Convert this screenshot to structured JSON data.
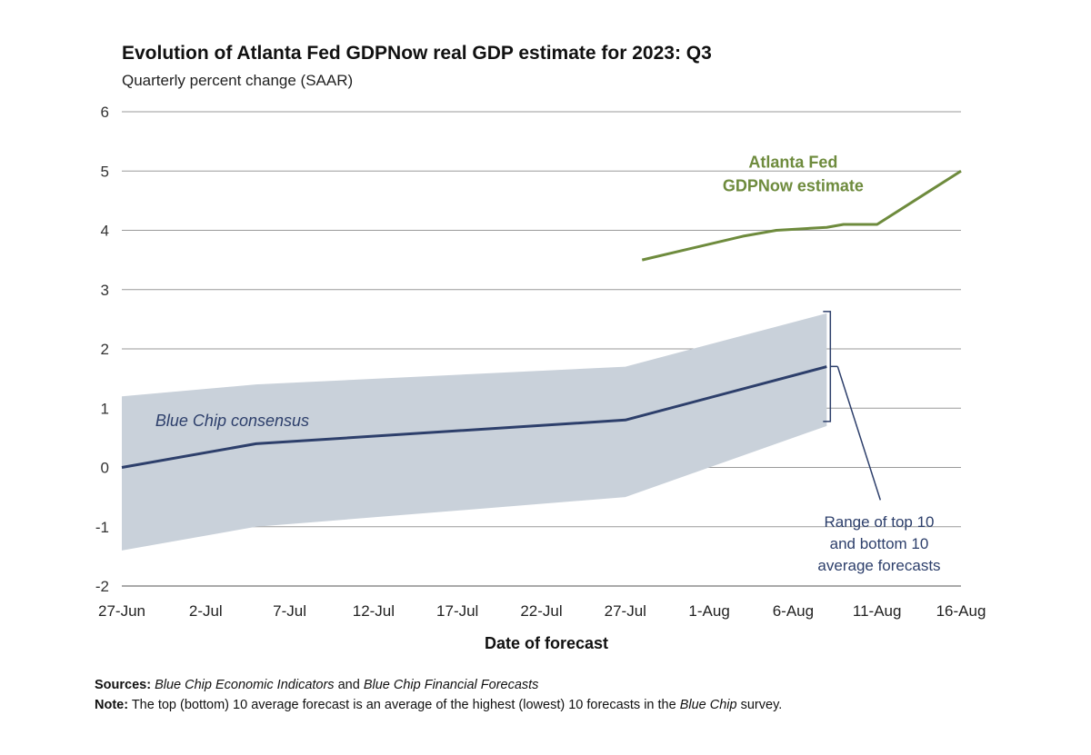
{
  "chart_data": {
    "type": "line",
    "title": "Evolution of Atlanta Fed GDPNow real GDP estimate for 2023: Q3",
    "subtitle": "Quarterly percent change (SAAR)",
    "xlabel": "Date of forecast",
    "ylabel": "",
    "x_unit": "day",
    "x_ticks": [
      {
        "label": "27-Jun",
        "date": "2023-06-27"
      },
      {
        "label": "2-Jul",
        "date": "2023-07-02"
      },
      {
        "label": "7-Jul",
        "date": "2023-07-07"
      },
      {
        "label": "12-Jul",
        "date": "2023-07-12"
      },
      {
        "label": "17-Jul",
        "date": "2023-07-17"
      },
      {
        "label": "22-Jul",
        "date": "2023-07-22"
      },
      {
        "label": "27-Jul",
        "date": "2023-07-27"
      },
      {
        "label": "1-Aug",
        "date": "2023-08-01"
      },
      {
        "label": "6-Aug",
        "date": "2023-08-06"
      },
      {
        "label": "11-Aug",
        "date": "2023-08-11"
      },
      {
        "label": "16-Aug",
        "date": "2023-08-16"
      }
    ],
    "xlim": [
      "2023-06-27",
      "2023-08-16"
    ],
    "ylim": [
      -2,
      6
    ],
    "y_ticks": [
      -2,
      -1,
      0,
      1,
      2,
      3,
      4,
      5,
      6
    ],
    "grid": true,
    "series": [
      {
        "name": "Atlanta Fed GDPNow estimate",
        "label_lines": [
          "Atlanta Fed",
          "GDPNow estimate"
        ],
        "color": "#6e8b3d",
        "points": [
          {
            "date": "2023-07-28",
            "value": 3.5
          },
          {
            "date": "2023-08-03",
            "value": 3.9
          },
          {
            "date": "2023-08-05",
            "value": 4.0
          },
          {
            "date": "2023-08-08",
            "value": 4.05
          },
          {
            "date": "2023-08-09",
            "value": 4.1
          },
          {
            "date": "2023-08-11",
            "value": 4.1
          },
          {
            "date": "2023-08-16",
            "value": 5.0
          }
        ]
      },
      {
        "name": "Blue Chip consensus",
        "color": "#2d3f6b",
        "points": [
          {
            "date": "2023-06-27",
            "value": 0.0
          },
          {
            "date": "2023-07-05",
            "value": 0.4
          },
          {
            "date": "2023-07-27",
            "value": 0.8
          },
          {
            "date": "2023-08-08",
            "value": 1.7
          }
        ]
      }
    ],
    "range_band": {
      "name": "Range of top 10 and bottom 10 average forecasts",
      "label_lines": [
        "Range of top 10",
        "and bottom 10",
        "average forecasts"
      ],
      "fill": "#c9d1da",
      "label_color": "#2d3f6b",
      "upper": [
        {
          "date": "2023-06-27",
          "value": 1.2
        },
        {
          "date": "2023-07-05",
          "value": 1.4
        },
        {
          "date": "2023-07-27",
          "value": 1.7
        },
        {
          "date": "2023-08-08",
          "value": 2.6
        }
      ],
      "lower": [
        {
          "date": "2023-06-27",
          "value": -1.4
        },
        {
          "date": "2023-07-05",
          "value": -1.0
        },
        {
          "date": "2023-07-27",
          "value": -0.5
        },
        {
          "date": "2023-08-08",
          "value": 0.7
        }
      ]
    }
  },
  "footer": {
    "sources_label": "Sources:",
    "sources_part1": "Blue Chip Economic Indicators",
    "sources_part2": " and ",
    "sources_part3": "Blue Chip Financial Forecasts",
    "note_label": "Note:",
    "note_part1": " The top (bottom) 10 average forecast is an average of the highest (lowest) 10 forecasts in the ",
    "note_part2": "Blue Chip",
    "note_part3": " survey."
  }
}
